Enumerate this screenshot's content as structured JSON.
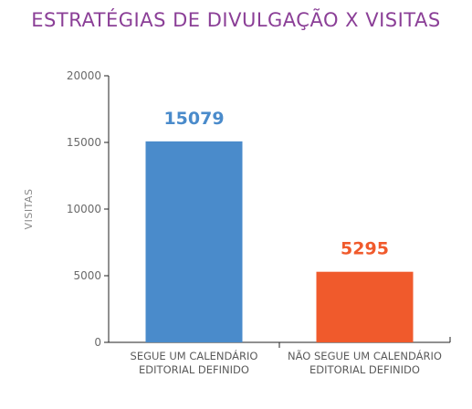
{
  "chart_data": {
    "type": "bar",
    "title": "ESTRATÉGIAS DE DIVULGAÇÃO X VISITAS",
    "xlabel": "",
    "ylabel": "VISITAS",
    "categories": [
      [
        "SEGUE UM CALENDÁRIO",
        "EDITORIAL DEFINIDO"
      ],
      [
        "NÃO SEGUE UM CALENDÁRIO",
        "EDITORIAL DEFINIDO"
      ]
    ],
    "values": [
      15079,
      5295
    ],
    "data_labels": [
      "15079",
      "5295"
    ],
    "colors": [
      "#4a8bcb",
      "#f05a2c"
    ],
    "title_color": "#8b3f97",
    "ylim": [
      0,
      20000
    ],
    "yticks": [
      0,
      5000,
      10000,
      15000,
      20000
    ],
    "ytick_labels": [
      "0",
      "5000",
      "10000",
      "15000",
      "20000"
    ],
    "grid": false,
    "legend": "none"
  }
}
